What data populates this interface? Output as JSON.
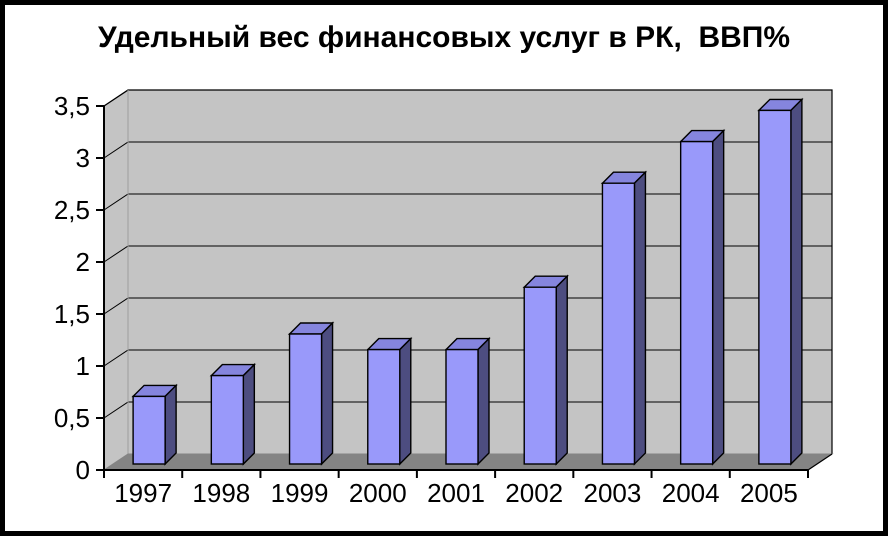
{
  "window": {
    "background": "#ffffff",
    "border_color": "#000000"
  },
  "chart_data": {
    "type": "bar",
    "style": "3d-column",
    "title": "Удельный вес финансовых услуг в РК,  ВВП%",
    "categories": [
      "1997",
      "1998",
      "1999",
      "2000",
      "2001",
      "2002",
      "2003",
      "2004",
      "2005"
    ],
    "values": [
      0.65,
      0.85,
      1.25,
      1.1,
      1.1,
      1.7,
      2.7,
      3.1,
      3.4
    ],
    "xlabel": "",
    "ylabel": "",
    "ylim": [
      0,
      3.5
    ],
    "y_tick_step": 0.5,
    "y_tick_labels": [
      "0",
      "0,5",
      "1",
      "1,5",
      "2",
      "2,5",
      "3",
      "3,5"
    ],
    "grid": true,
    "legend": "none",
    "colors": {
      "bar_front": "#9999FA",
      "bar_top": "#8585DE",
      "bar_side": "#4D4D80",
      "bar_outline": "#000000",
      "wall": "#C4C4C4",
      "wall_fold": "#9E9E9E",
      "floor": "#848484",
      "gridline": "#000000",
      "axis": "#000000",
      "text": "#000000"
    }
  }
}
